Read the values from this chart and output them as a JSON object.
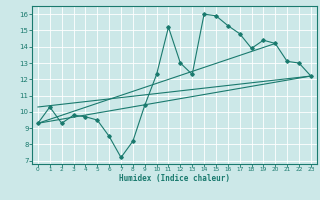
{
  "xlabel": "Humidex (Indice chaleur)",
  "bg_color": "#cce8e8",
  "grid_color": "#ffffff",
  "line_color": "#1a7a6e",
  "xlim": [
    -0.5,
    23.5
  ],
  "ylim": [
    6.8,
    16.5
  ],
  "yticks": [
    7,
    8,
    9,
    10,
    11,
    12,
    13,
    14,
    15,
    16
  ],
  "xticks": [
    0,
    1,
    2,
    3,
    4,
    5,
    6,
    7,
    8,
    9,
    10,
    11,
    12,
    13,
    14,
    15,
    16,
    17,
    18,
    19,
    20,
    21,
    22,
    23
  ],
  "main_line_x": [
    0,
    1,
    2,
    3,
    4,
    5,
    6,
    7,
    8,
    9,
    10,
    11,
    12,
    13,
    14,
    15,
    16,
    17,
    18,
    19,
    20,
    21,
    22,
    23
  ],
  "main_line_y": [
    9.3,
    10.3,
    9.3,
    9.8,
    9.7,
    9.5,
    8.5,
    7.2,
    8.2,
    10.4,
    12.3,
    15.2,
    13.0,
    12.3,
    16.0,
    15.9,
    15.3,
    14.8,
    13.9,
    14.4,
    14.2,
    13.1,
    13.0,
    12.2
  ],
  "trend1_x": [
    0,
    23
  ],
  "trend1_y": [
    9.3,
    12.2
  ],
  "trend2_x": [
    0,
    20
  ],
  "trend2_y": [
    9.3,
    14.2
  ],
  "trend3_x": [
    0,
    23
  ],
  "trend3_y": [
    10.3,
    12.2
  ]
}
